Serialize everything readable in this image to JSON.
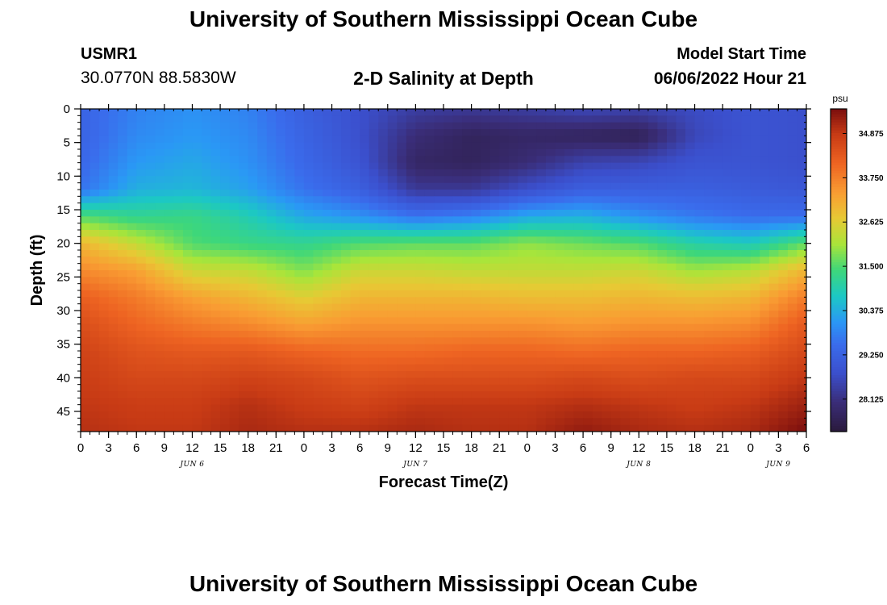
{
  "header": {
    "title": "University of Southern Mississippi Ocean Cube",
    "station_id": "USMR1",
    "station_coords": "30.0770N  88.5830W",
    "subtitle": "2-D Salinity at Depth",
    "start_label": "Model Start Time",
    "start_value": "06/06/2022 Hour 21"
  },
  "footer": {
    "title": "University of Southern Mississippi Ocean Cube"
  },
  "chart_data": {
    "type": "heatmap",
    "title": "2-D Salinity at Depth",
    "xlabel": "Forecast Time(Z)",
    "ylabel": "Depth (ft)",
    "x_ticks": [
      "0",
      "3",
      "6",
      "9",
      "12",
      "15",
      "18",
      "21",
      "0",
      "3",
      "6",
      "9",
      "12",
      "15",
      "18",
      "21",
      "0",
      "3",
      "6",
      "9",
      "12",
      "15",
      "18",
      "21",
      "0",
      "3",
      "6"
    ],
    "x_hours": [
      0,
      3,
      6,
      9,
      12,
      15,
      18,
      21,
      24,
      27,
      30,
      33,
      36,
      39,
      42,
      45,
      48,
      51,
      54,
      57,
      60,
      63,
      66,
      69,
      72,
      75,
      78
    ],
    "xlim": [
      0,
      78
    ],
    "day_labels": [
      {
        "label": "JUN 6",
        "hour": 12
      },
      {
        "label": "JUN 7",
        "hour": 36
      },
      {
        "label": "JUN 8",
        "hour": 60
      },
      {
        "label": "JUN 9",
        "hour": 75
      }
    ],
    "y_ticks": [
      0,
      5,
      10,
      15,
      20,
      25,
      30,
      35,
      40,
      45
    ],
    "ylim": [
      0,
      48
    ],
    "y_inverted": true,
    "colorbar": {
      "unit": "psu",
      "min": 27.3,
      "max": 35.5,
      "ticks": [
        34.875,
        33.75,
        32.625,
        31.5,
        30.375,
        29.25,
        28.125
      ],
      "tick_labels": [
        "34.875",
        "33.750",
        "32.625",
        "31.500",
        "30.375",
        "29.250",
        "28.125"
      ],
      "colormap": [
        {
          "v": 0.0,
          "c": "#2a1a3c"
        },
        {
          "v": 0.09,
          "c": "#3a2d78"
        },
        {
          "v": 0.18,
          "c": "#3b4fcc"
        },
        {
          "v": 0.27,
          "c": "#3a6cec"
        },
        {
          "v": 0.34,
          "c": "#2a98f5"
        },
        {
          "v": 0.42,
          "c": "#1cc8c4"
        },
        {
          "v": 0.5,
          "c": "#3ed77a"
        },
        {
          "v": 0.58,
          "c": "#a9e53a"
        },
        {
          "v": 0.66,
          "c": "#e7c934"
        },
        {
          "v": 0.74,
          "c": "#f99d33"
        },
        {
          "v": 0.83,
          "c": "#ee6422"
        },
        {
          "v": 0.92,
          "c": "#c83b15"
        },
        {
          "v": 1.0,
          "c": "#7a0e0e"
        }
      ]
    },
    "grid_hours": [
      0,
      6,
      12,
      18,
      24,
      30,
      36,
      42,
      48,
      54,
      60,
      66,
      72,
      78
    ],
    "grid_depths": [
      0,
      4,
      8,
      12,
      16,
      20,
      24,
      28,
      32,
      36,
      40,
      44,
      48
    ],
    "salinity": [
      [
        29.3,
        29.8,
        30.0,
        29.8,
        29.2,
        28.8,
        28.4,
        28.3,
        28.4,
        28.6,
        28.5,
        28.7,
        28.9,
        28.8
      ],
      [
        29.3,
        29.9,
        30.1,
        29.9,
        29.3,
        28.8,
        28.0,
        27.7,
        27.8,
        27.7,
        27.6,
        28.6,
        28.9,
        28.8
      ],
      [
        29.4,
        30.1,
        30.3,
        30.0,
        29.4,
        28.9,
        27.8,
        27.7,
        28.0,
        28.5,
        28.6,
        28.9,
        28.9,
        28.8
      ],
      [
        29.6,
        30.4,
        30.5,
        30.2,
        29.6,
        29.2,
        28.3,
        28.3,
        28.8,
        29.2,
        29.2,
        29.2,
        29.1,
        29.0
      ],
      [
        31.5,
        31.2,
        31.3,
        30.9,
        30.3,
        30.0,
        29.6,
        29.8,
        30.3,
        30.4,
        30.0,
        29.7,
        29.5,
        29.5
      ],
      [
        33.0,
        32.3,
        31.5,
        31.3,
        31.2,
        31.5,
        31.6,
        31.6,
        31.9,
        31.7,
        31.5,
        31.0,
        30.8,
        31.6
      ],
      [
        33.6,
        33.3,
        32.4,
        32.3,
        31.8,
        32.4,
        32.4,
        32.3,
        32.3,
        32.3,
        32.4,
        32.0,
        32.2,
        33.0
      ],
      [
        34.2,
        33.8,
        33.3,
        33.0,
        32.6,
        33.0,
        33.0,
        33.0,
        32.9,
        32.9,
        33.0,
        32.9,
        33.0,
        33.8
      ],
      [
        34.5,
        34.1,
        33.8,
        33.6,
        33.3,
        33.5,
        33.5,
        33.5,
        33.5,
        33.4,
        33.5,
        33.5,
        33.6,
        34.3
      ],
      [
        34.7,
        34.4,
        34.3,
        34.3,
        34.1,
        34.0,
        34.0,
        34.1,
        34.1,
        34.0,
        34.1,
        34.1,
        34.2,
        34.6
      ],
      [
        34.8,
        34.6,
        34.6,
        34.7,
        34.6,
        34.4,
        34.5,
        34.5,
        34.5,
        34.6,
        34.5,
        34.6,
        34.6,
        34.9
      ],
      [
        34.9,
        34.8,
        34.8,
        35.0,
        34.8,
        34.7,
        34.9,
        34.9,
        34.9,
        35.0,
        34.9,
        34.8,
        34.9,
        35.2
      ],
      [
        35.0,
        34.9,
        34.9,
        35.1,
        35.0,
        35.0,
        35.1,
        35.0,
        35.0,
        35.3,
        35.1,
        35.0,
        35.1,
        35.5
      ]
    ]
  }
}
